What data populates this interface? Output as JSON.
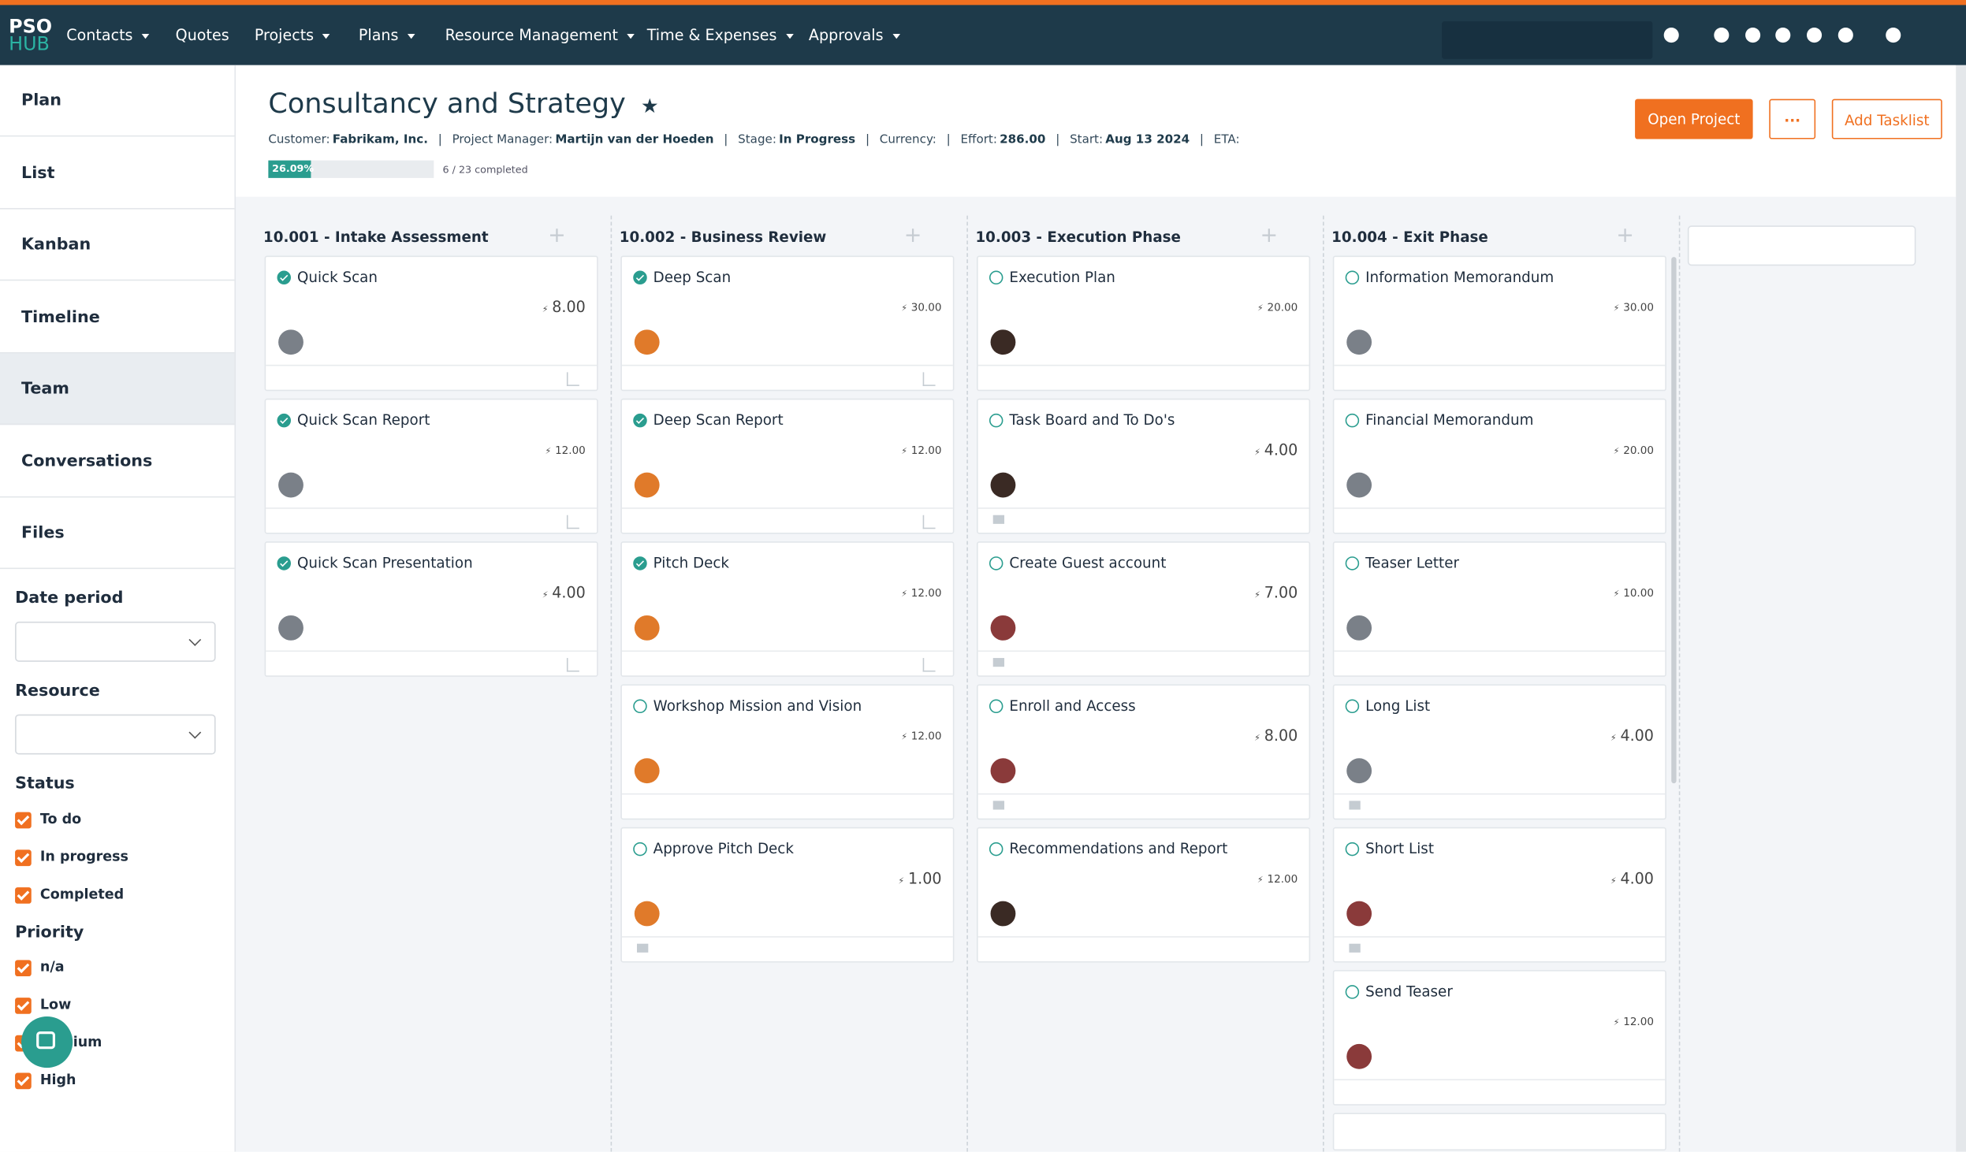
{
  "topbar": {
    "logo": [
      "PSO",
      "HUB"
    ],
    "menu": [
      {
        "label": "Contacts",
        "dropdown": true
      },
      {
        "label": "Quotes",
        "dropdown": false
      },
      {
        "label": "Projects",
        "dropdown": true
      },
      {
        "label": "Plans",
        "dropdown": true
      },
      {
        "label": "Resource Management",
        "dropdown": true
      },
      {
        "label": "Time & Expenses",
        "dropdown": true
      },
      {
        "label": "Approvals",
        "dropdown": true
      }
    ]
  },
  "sidebar": {
    "views": [
      "Plan",
      "List",
      "Kanban",
      "Timeline",
      "Team",
      "Conversations",
      "Files"
    ],
    "active": "Team",
    "filters": {
      "date_period": "Date period",
      "resource": "Resource",
      "status": {
        "label": "Status",
        "options": [
          "To do",
          "In progress",
          "Completed"
        ]
      },
      "priority": {
        "label": "Priority",
        "options": [
          "n/a",
          "Low",
          "Medium",
          "High"
        ]
      }
    }
  },
  "header": {
    "title": "Consultancy and Strategy",
    "star": "★",
    "meta": [
      {
        "label": "Customer:",
        "value": "Fabrikam, Inc."
      },
      {
        "label": "Project Manager:",
        "value": "Martijn van der Hoeden"
      },
      {
        "label": "Stage:",
        "value": "In Progress"
      },
      {
        "label": "Currency:"
      },
      {
        "label": "Effort:",
        "value": "286.00"
      },
      {
        "label": "Start:",
        "value": "Aug 13 2024"
      },
      {
        "label": "ETA:"
      }
    ],
    "progress": {
      "value": 26.09,
      "label": "26.09%"
    },
    "completed": "6 / 23 completed",
    "buttons": [
      "Open Project",
      "···",
      "Add Tasklist"
    ]
  },
  "board": {
    "columns": [
      {
        "title": "10.001 - Intake Assessment",
        "cards": [
          {
            "title": "Quick Scan",
            "effort": "8.00",
            "done": true,
            "avatar": "#7a8088"
          },
          {
            "title": "Quick Scan Report",
            "effort": "12.00",
            "done": true,
            "avatar": "#7a8088"
          },
          {
            "title": "Quick Scan Presentation",
            "effort": "4.00",
            "done": true,
            "avatar": "#7a8088"
          }
        ]
      },
      {
        "title": "10.002 - Business Review",
        "cards": [
          {
            "title": "Deep Scan",
            "effort": "30.00",
            "done": true,
            "avatar": "#e07a2a"
          },
          {
            "title": "Deep Scan Report",
            "effort": "12.00",
            "done": true,
            "avatar": "#e07a2a"
          },
          {
            "title": "Pitch Deck",
            "effort": "12.00",
            "done": true,
            "avatar": "#e07a2a"
          },
          {
            "title": "Workshop Mission and Vision",
            "effort": "12.00",
            "done": false,
            "avatar": "#e07a2a"
          },
          {
            "title": "Approve Pitch Deck",
            "effort": "1.00",
            "done": false,
            "avatar": "#e07a2a"
          }
        ]
      },
      {
        "title": "10.003 - Execution Phase",
        "cards": [
          {
            "title": "Execution Plan",
            "effort": "20.00",
            "done": false,
            "avatar": "#3a2a24"
          },
          {
            "title": "Task Board and To Do's",
            "effort": "4.00",
            "done": false,
            "avatar": "#3a2a24"
          },
          {
            "title": "Create Guest account",
            "effort": "7.00",
            "done": false,
            "avatar": "#8a3a3a"
          },
          {
            "title": "Enroll and Access",
            "effort": "8.00",
            "done": false,
            "avatar": "#8a3a3a"
          },
          {
            "title": "Recommendations and Report",
            "effort": "12.00",
            "done": false,
            "avatar": "#3a2a24"
          }
        ]
      },
      {
        "title": "10.004 - Exit Phase",
        "cards": [
          {
            "title": "Information Memorandum",
            "effort": "30.00",
            "done": false,
            "avatar": "#7a8088"
          },
          {
            "title": "Financial Memorandum",
            "effort": "20.00",
            "done": false,
            "avatar": "#7a8088"
          },
          {
            "title": "Teaser Letter",
            "effort": "10.00",
            "done": false,
            "avatar": "#7a8088"
          },
          {
            "title": "Long List",
            "effort": "4.00",
            "done": false,
            "avatar": "#7a8088"
          },
          {
            "title": "Short List",
            "effort": "4.00",
            "done": false,
            "avatar": "#8a3a3a"
          },
          {
            "title": "Send Teaser",
            "effort": "12.00",
            "done": false,
            "avatar": "#8a3a3a"
          }
        ]
      }
    ]
  }
}
